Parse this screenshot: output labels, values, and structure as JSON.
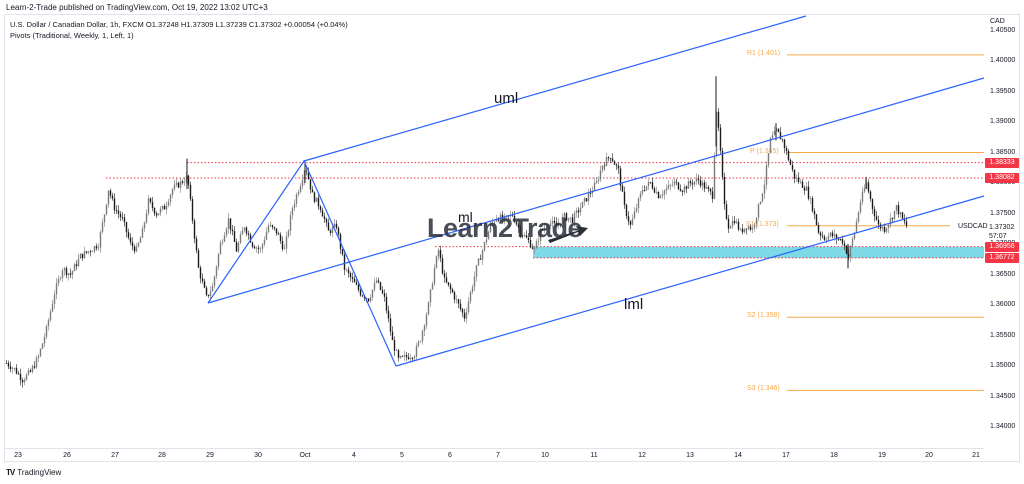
{
  "header": {
    "publisher_line": "Learn-2-Trade published on TradingView.com, Oct 19, 2022 13:02 UTC+3",
    "symbol_line": "U.S. Dollar / Canadian Dollar, 1h, FXCM  O1.37248  H1.37309  L1.37239  C1.37302  +0.00054 (+0.04%)",
    "indicator_line": "Pivots (Traditional, Weekly, 1, Left, 1)"
  },
  "footer": {
    "logo_mark": "TV",
    "logo_text": "TradingView"
  },
  "watermark": "Learn2Trade",
  "colors": {
    "channel": "#2962ff",
    "pivot": "#f7a94a",
    "resistance_dotted": "#f23645",
    "zone_fill": "#7dd9e6",
    "badge": "#f23645",
    "candle_up": "#7b7b7b",
    "candle_down": "#1a1a1a"
  },
  "price_axis": {
    "currency": "CAD",
    "ticks": [
      "1.40500",
      "1.40000",
      "1.39500",
      "1.39000",
      "1.38500",
      "1.38000",
      "1.37500",
      "1.37000",
      "1.36500",
      "1.36000",
      "1.35500",
      "1.35000",
      "1.34500",
      "1.34000"
    ],
    "current_price": "1.37302",
    "countdown": "57:07",
    "symbol": "USDCAD"
  },
  "badges": [
    {
      "label": "1.38333",
      "price": 1.38333
    },
    {
      "label": "1.38082",
      "price": 1.38082
    },
    {
      "label": "1.36956",
      "price": 1.36956
    },
    {
      "label": "1.36772",
      "price": 1.36772
    }
  ],
  "pivots": [
    {
      "name": "R1",
      "label": "R1 (1.401)",
      "price": 1.401
    },
    {
      "name": "P",
      "label": "P (1.385)",
      "price": 1.385
    },
    {
      "name": "S1",
      "label": "S1 (1.373)",
      "price": 1.373
    },
    {
      "name": "S2",
      "label": "S2 (1.358)",
      "price": 1.358
    },
    {
      "name": "S3",
      "label": "S3 (1.346)",
      "price": 1.346
    }
  ],
  "channel_labels": {
    "upper": "uml",
    "middle": "ml",
    "lower": "lml"
  },
  "time_axis": {
    "labels": [
      "23",
      "26",
      "27",
      "28",
      "29",
      "30",
      "Oct",
      "4",
      "5",
      "6",
      "7",
      "10",
      "11",
      "12",
      "13",
      "14",
      "17",
      "18",
      "19",
      "20",
      "21"
    ]
  },
  "chart_data": {
    "type": "candlestick",
    "title": "U.S. Dollar / Canadian Dollar, 1h, FXCM",
    "symbol": "USDCAD",
    "timeframe": "1h",
    "ohlc_last": {
      "open": 1.37248,
      "high": 1.37309,
      "low": 1.37239,
      "close": 1.37302,
      "change": 0.00054,
      "change_pct": "+0.04%"
    },
    "ylim": [
      1.336,
      1.408
    ],
    "xlabel": "",
    "ylabel": "CAD",
    "x_ticks": [
      "Sep 23",
      "26",
      "27",
      "28",
      "29",
      "30",
      "Oct",
      "4",
      "5",
      "6",
      "7",
      "10",
      "11",
      "12",
      "13",
      "14",
      "17",
      "18",
      "19",
      "20",
      "21"
    ],
    "approx_path": [
      {
        "date": "Sep 23",
        "price": 1.349
      },
      {
        "date": "Sep 26",
        "price": 1.362
      },
      {
        "date": "Sep 27",
        "price": 1.377
      },
      {
        "date": "Sep 28",
        "price": 1.379
      },
      {
        "date": "Sep 28 high",
        "price": 1.3833
      },
      {
        "date": "Sep 29",
        "price": 1.3605
      },
      {
        "date": "Sep 30",
        "price": 1.372
      },
      {
        "date": "Oct 1",
        "price": 1.3833
      },
      {
        "date": "Oct 4",
        "price": 1.365
      },
      {
        "date": "Oct 5",
        "price": 1.3505
      },
      {
        "date": "Oct 6",
        "price": 1.369
      },
      {
        "date": "Oct 6 low",
        "price": 1.357
      },
      {
        "date": "Oct 7",
        "price": 1.374
      },
      {
        "date": "Oct 10",
        "price": 1.374
      },
      {
        "date": "Oct 11",
        "price": 1.385
      },
      {
        "date": "Oct 12",
        "price": 1.379
      },
      {
        "date": "Oct 13",
        "price": 1.381
      },
      {
        "date": "Oct 13 spike",
        "price": 1.3975
      },
      {
        "date": "Oct 14",
        "price": 1.373
      },
      {
        "date": "Oct 17",
        "price": 1.3895
      },
      {
        "date": "Oct 18",
        "price": 1.3685
      },
      {
        "date": "Oct 18 high",
        "price": 1.3805
      },
      {
        "date": "Oct 19",
        "price": 1.37302
      }
    ],
    "horizontal_levels": [
      {
        "type": "resistance",
        "price": 1.38333
      },
      {
        "type": "resistance",
        "price": 1.38082
      },
      {
        "type": "support_zone_top",
        "price": 1.36956
      },
      {
        "type": "support_zone_bottom",
        "price": 1.36772
      }
    ],
    "pivot_levels": {
      "R1": 1.401,
      "P": 1.385,
      "S1": 1.373,
      "S2": 1.358,
      "S3": 1.346
    },
    "pitchfork": {
      "type": "ascending channel (Andrews pitchfork)",
      "lines": [
        "uml (upper median line)",
        "ml (median line)",
        "lml (lower median line)"
      ],
      "anchor_points": [
        {
          "date": "Sep 29",
          "price": 1.3605
        },
        {
          "date": "Oct 1",
          "price": 1.3833
        },
        {
          "date": "Oct 5",
          "price": 1.3505
        }
      ]
    },
    "annotations": [
      "uml",
      "ml",
      "lml",
      "Learn2Trade watermark"
    ]
  }
}
